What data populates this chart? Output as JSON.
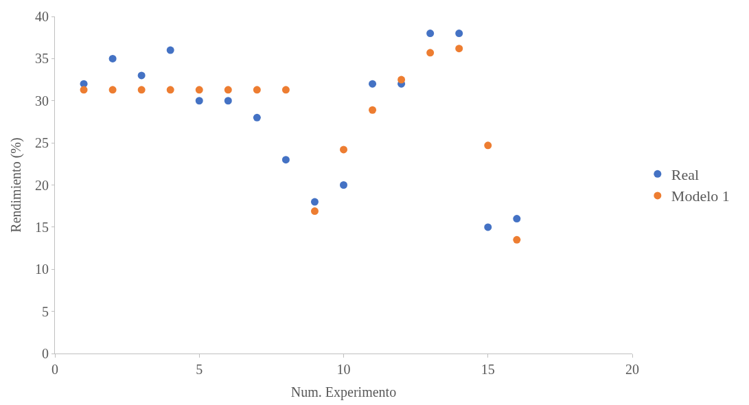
{
  "chart_data": {
    "type": "scatter",
    "xlabel": "Num. Experimento",
    "ylabel": "Rendimiento (%)",
    "x": [
      1,
      2,
      3,
      4,
      5,
      6,
      7,
      8,
      9,
      10,
      11,
      12,
      13,
      14,
      15,
      16
    ],
    "series": [
      {
        "name": "Real",
        "color": "#4472c4",
        "values": [
          32,
          35,
          33,
          36,
          30,
          30,
          28,
          23,
          18,
          20,
          32,
          32,
          38,
          38,
          15,
          16
        ]
      },
      {
        "name": "Modelo 1",
        "color": "#ed7d31",
        "values": [
          31.3,
          31.3,
          31.3,
          31.3,
          31.3,
          31.3,
          31.3,
          31.3,
          16.9,
          24.2,
          28.9,
          32.5,
          35.7,
          36.2,
          24.7,
          13.5
        ]
      }
    ],
    "xlim": [
      0,
      20
    ],
    "xticks": [
      0,
      5,
      10,
      15,
      20
    ],
    "ylim": [
      0,
      40
    ],
    "yticks": [
      0,
      5,
      10,
      15,
      20,
      25,
      30,
      35,
      40
    ],
    "grid": false,
    "legend": "right",
    "marker": "circle"
  }
}
